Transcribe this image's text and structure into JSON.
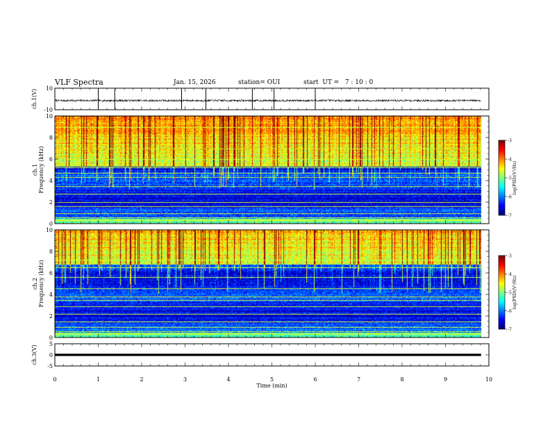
{
  "header": {
    "title": "VLF Spectra",
    "date": "Jan. 15, 2026",
    "station": "station= OUI",
    "start": "start  UT =   7 : 10 : 0"
  },
  "chart_data": [
    {
      "type": "line",
      "name": "ch1-waveform",
      "ylabel": "ch.1(V)",
      "ylim": [
        -10,
        10
      ],
      "yticks": [
        "10",
        "-10"
      ],
      "xlim": [
        0,
        10
      ],
      "baseline": -1.5,
      "spikes_min": [
        1.0,
        1.38,
        2.92,
        3.48,
        4.55,
        5.05,
        6.0
      ]
    },
    {
      "type": "heatmap",
      "name": "ch1-spectrogram",
      "ylabel": "ch.1\nFrequency (kHz)",
      "ylabel_line1": "ch.1",
      "ylabel_line2": "Frequency (kHz)",
      "ylim": [
        0,
        10
      ],
      "yticks": [
        "0",
        "2",
        "4",
        "6",
        "8",
        "10"
      ],
      "xlim": [
        0,
        10
      ],
      "data_end_min": 9.82,
      "colorbar": {
        "label": "log(PSD)(V²/Hz)",
        "ticks": [
          "-3",
          "-4",
          "-5",
          "-6",
          "-7"
        ],
        "range": [
          -7,
          -3
        ]
      },
      "band_boundary_khz": 5.3,
      "tone_lines_khz": [
        0.3,
        0.6,
        1.0,
        1.6,
        2.0,
        2.8,
        3.5,
        4.3,
        4.7,
        5.2,
        6.0,
        7.0,
        9.0
      ],
      "seed": 11
    },
    {
      "type": "heatmap",
      "name": "ch2-spectrogram",
      "ylabel": "ch.2\nFrequency (kHz)",
      "ylabel_line1": "ch.2",
      "ylabel_line2": "Frequency (kHz)",
      "ylim": [
        0,
        10
      ],
      "yticks": [
        "0",
        "2",
        "4",
        "6",
        "8",
        "10"
      ],
      "xlim": [
        0,
        10
      ],
      "data_end_min": 9.82,
      "colorbar": {
        "label": "log(PSD)(V²/Hz)",
        "ticks": [
          "-3",
          "-4",
          "-5",
          "-6",
          "-7"
        ],
        "range": [
          -7,
          -3
        ]
      },
      "band_boundary_khz": 6.8,
      "tone_lines_khz": [
        0.3,
        0.6,
        1.0,
        1.5,
        2.2,
        2.9,
        3.5,
        3.8,
        4.6,
        5.6,
        6.5,
        7.2
      ],
      "seed": 29
    },
    {
      "type": "line",
      "name": "ch3-waveform",
      "ylabel": "ch.3(V)",
      "ylim": [
        -5,
        5
      ],
      "yticks": [
        "5",
        "0",
        "-5"
      ],
      "xlim": [
        0,
        10
      ],
      "baseline": 0
    }
  ],
  "x_axis": {
    "label": "Time (min)",
    "ticks": [
      "0",
      "1",
      "2",
      "3",
      "4",
      "5",
      "6",
      "7",
      "8",
      "9",
      "10"
    ]
  }
}
